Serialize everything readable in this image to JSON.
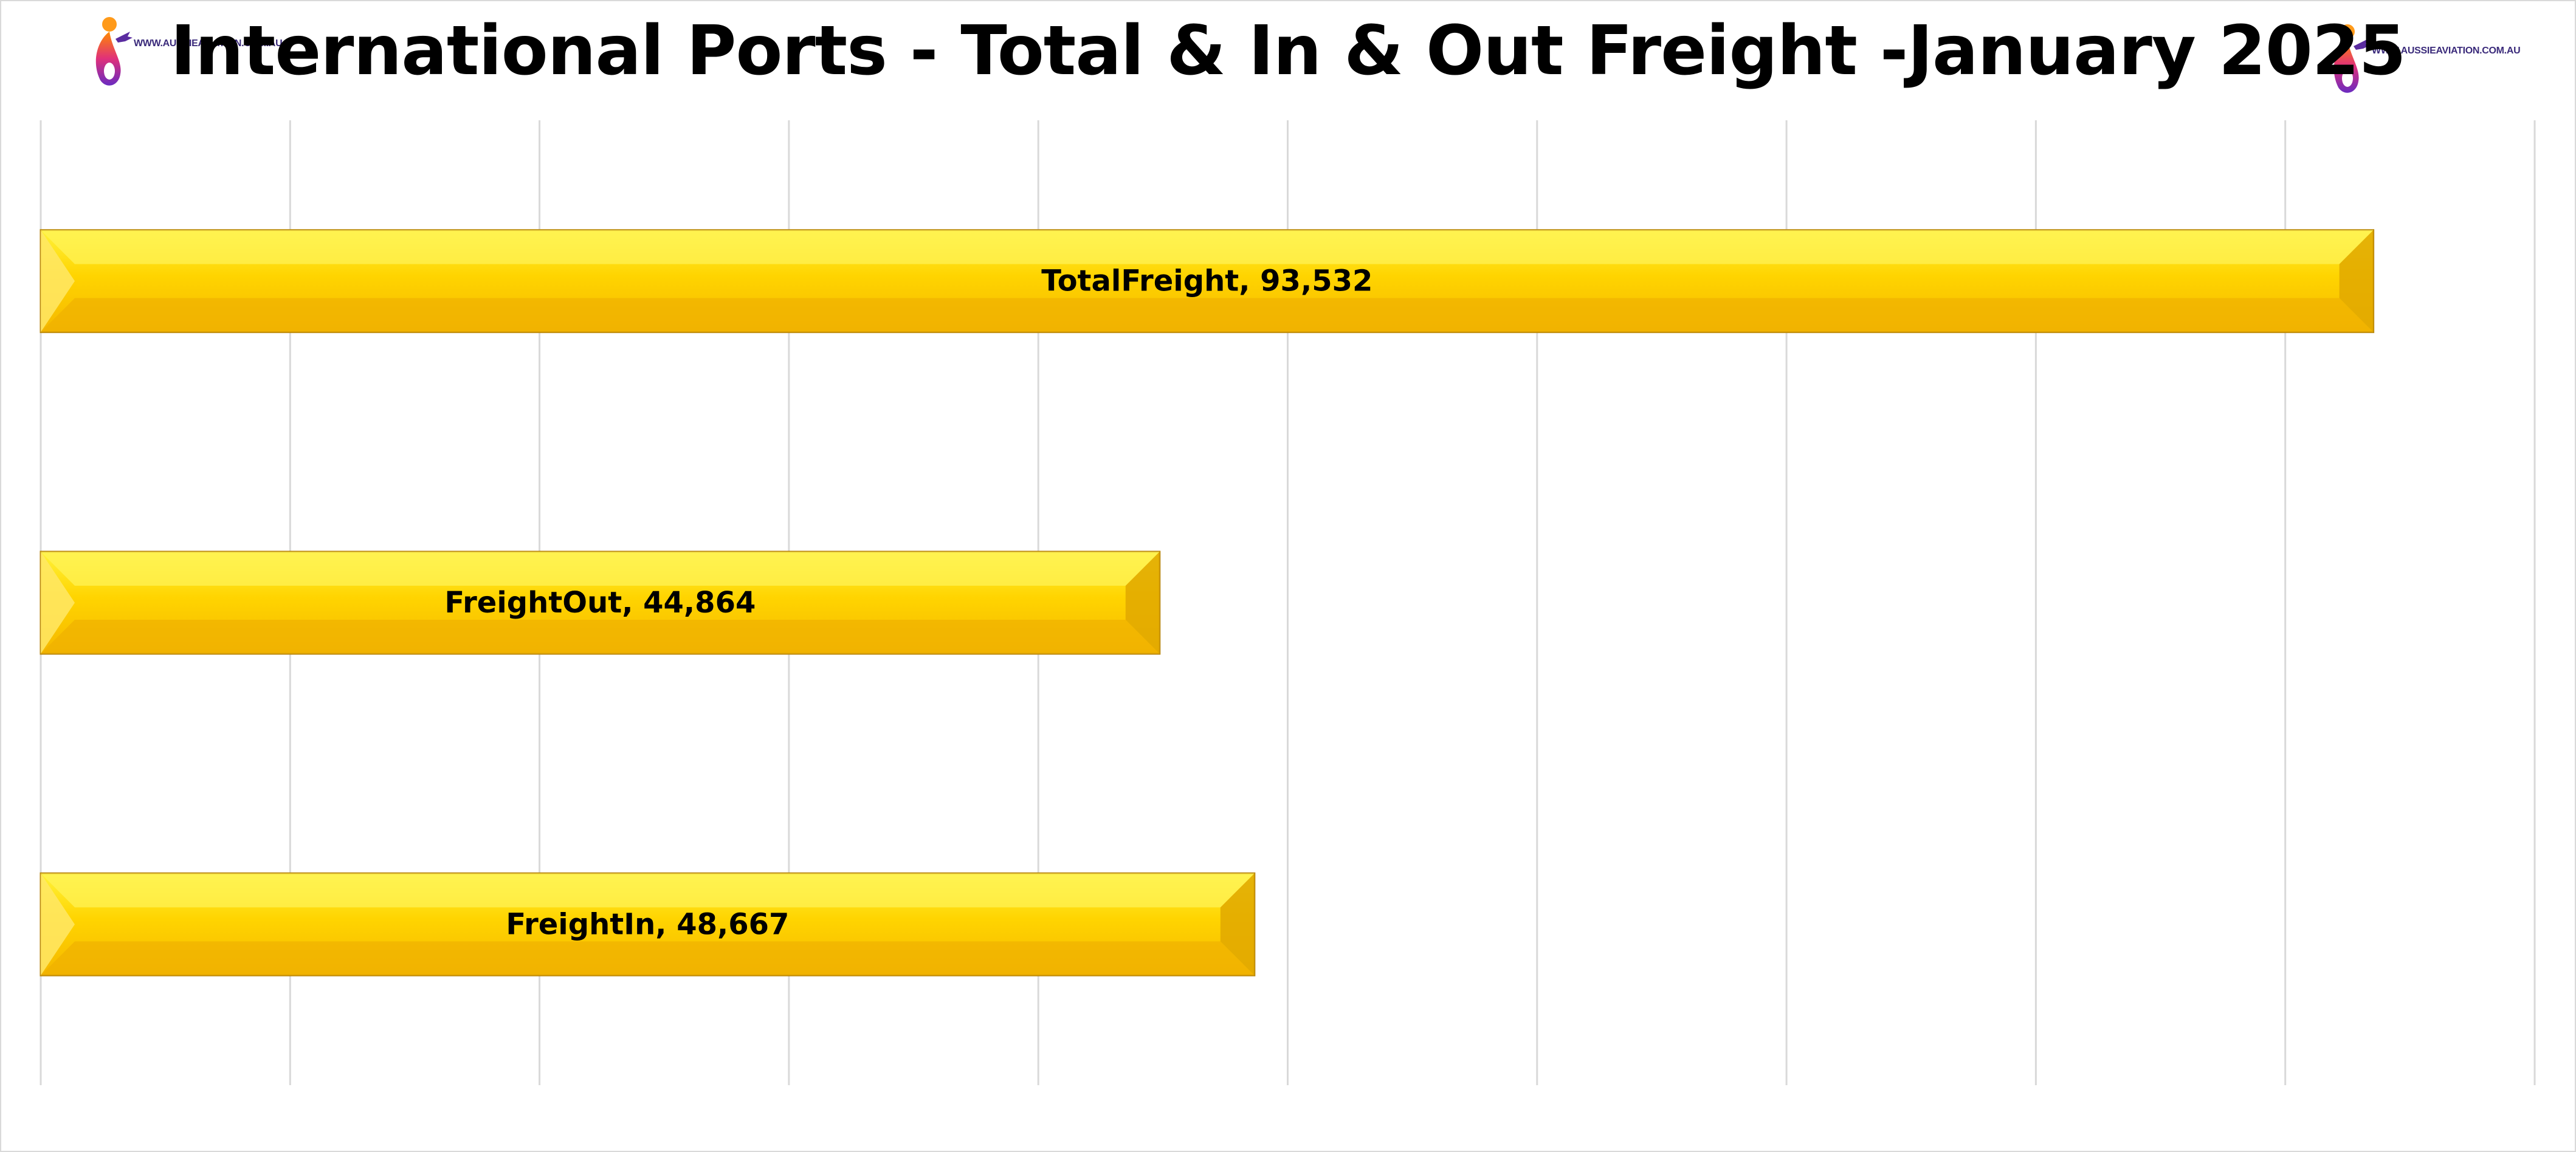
{
  "header": {
    "title": "International Ports - Total & In & Out Freight -January 2025",
    "logo_text": "WWW.AUSSIEAVIATION.COM.AU"
  },
  "colors": {
    "bar_light": "#fff23a",
    "bar_mid": "#ffd400",
    "bar_dark": "#f5b800",
    "bar_edge": "#b8860b",
    "grid": "#d9d9d9"
  },
  "chart_data": {
    "type": "bar",
    "orientation": "horizontal",
    "title": "International Ports - Total & In & Out Freight -January 2025",
    "categories": [
      "TotalFreight",
      "FreightOut",
      "FreightIn"
    ],
    "values": [
      93532,
      44864,
      48667
    ],
    "labels": [
      "TotalFreight, 93,532",
      "FreightOut, 44,864",
      "FreightIn, 48,667"
    ],
    "xlim": [
      0,
      100000
    ],
    "x_gridlines_every": 10000,
    "grid": true,
    "legend": "none"
  }
}
